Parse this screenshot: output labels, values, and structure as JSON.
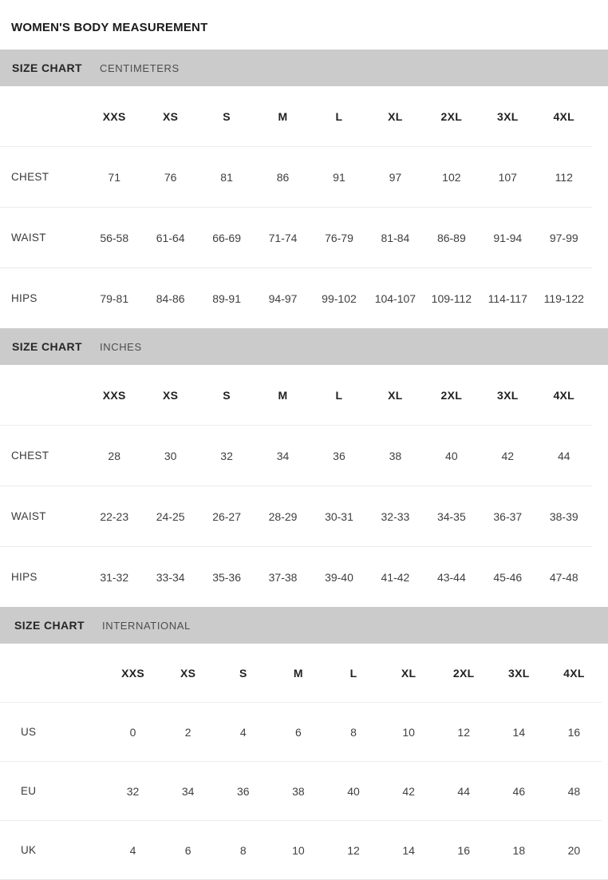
{
  "page": {
    "title": "WOMEN'S BODY MEASUREMENT"
  },
  "colors": {
    "page_bg": "#ffffff",
    "section_bar_bg": "#cbcbcb",
    "title_text": "#1b1b1b",
    "bar_title_text": "#262626",
    "bar_unit_text": "#4d4d4d",
    "cell_text": "#3f3f3f",
    "divider": "#ebebeb"
  },
  "sizes": [
    "XXS",
    "XS",
    "S",
    "M",
    "L",
    "XL",
    "2XL",
    "3XL",
    "4XL"
  ],
  "sections": [
    {
      "label": "SIZE CHART",
      "unit": "CENTIMETERS",
      "rows": [
        {
          "label": "CHEST",
          "values": [
            "71",
            "76",
            "81",
            "86",
            "91",
            "97",
            "102",
            "107",
            "112"
          ]
        },
        {
          "label": "WAIST",
          "values": [
            "56-58",
            "61-64",
            "66-69",
            "71-74",
            "76-79",
            "81-84",
            "86-89",
            "91-94",
            "97-99"
          ]
        },
        {
          "label": "HIPS",
          "values": [
            "79-81",
            "84-86",
            "89-91",
            "94-97",
            "99-102",
            "104-107",
            "109-112",
            "114-117",
            "119-122"
          ]
        }
      ]
    },
    {
      "label": "SIZE CHART",
      "unit": "INCHES",
      "rows": [
        {
          "label": "CHEST",
          "values": [
            "28",
            "30",
            "32",
            "34",
            "36",
            "38",
            "40",
            "42",
            "44"
          ]
        },
        {
          "label": "WAIST",
          "values": [
            "22-23",
            "24-25",
            "26-27",
            "28-29",
            "30-31",
            "32-33",
            "34-35",
            "36-37",
            "38-39"
          ]
        },
        {
          "label": "HIPS",
          "values": [
            "31-32",
            "33-34",
            "35-36",
            "37-38",
            "39-40",
            "41-42",
            "43-44",
            "45-46",
            "47-48"
          ]
        }
      ]
    },
    {
      "label": "SIZE CHART",
      "unit": "INTERNATIONAL",
      "rows": [
        {
          "label": "US",
          "values": [
            "0",
            "2",
            "4",
            "6",
            "8",
            "10",
            "12",
            "14",
            "16"
          ]
        },
        {
          "label": "EU",
          "values": [
            "32",
            "34",
            "36",
            "38",
            "40",
            "42",
            "44",
            "46",
            "48"
          ]
        },
        {
          "label": "UK",
          "values": [
            "4",
            "6",
            "8",
            "10",
            "12",
            "14",
            "16",
            "18",
            "20"
          ]
        }
      ]
    }
  ]
}
